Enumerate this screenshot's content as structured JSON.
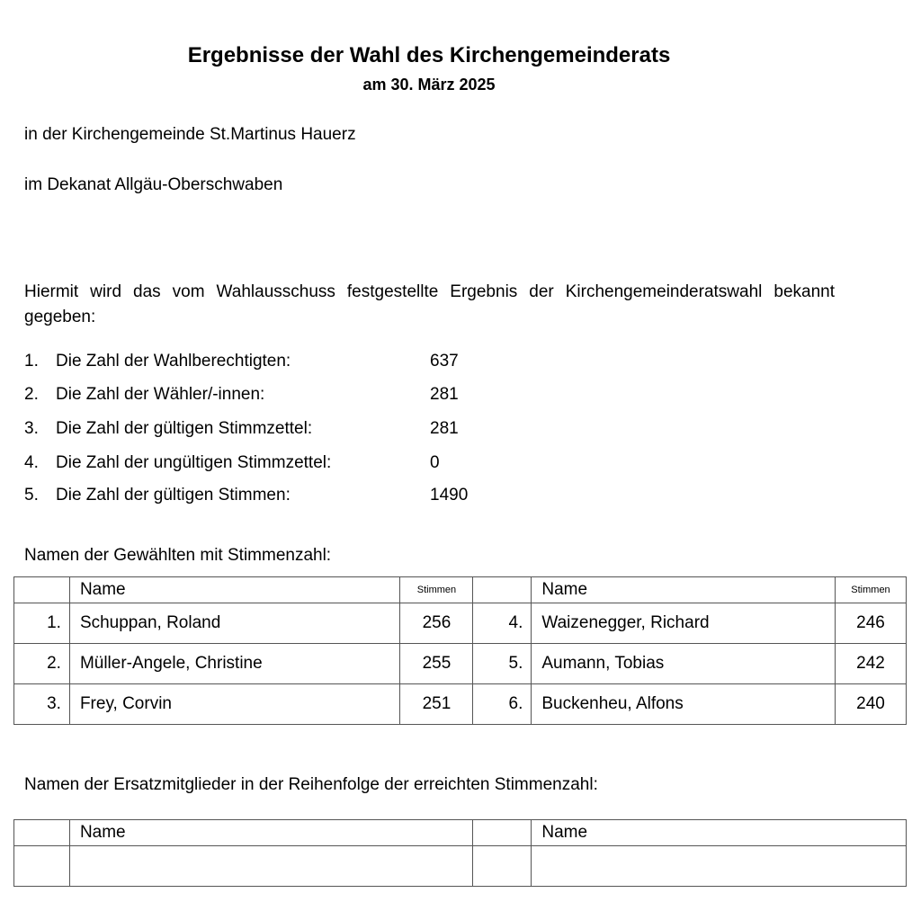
{
  "title": "Ergebnisse der Wahl des Kirchengemeinderats",
  "subtitle": "am 30. März 2025",
  "parish": "in der Kirchengemeinde St.Martinus Hauerz",
  "deanery": "im Dekanat Allgäu-Oberschwaben",
  "intro": "Hiermit wird das vom Wahlausschuss festgestellte Ergebnis der Kirchengemeinderatswahl bekannt gegeben:",
  "stats": [
    {
      "num": "1.",
      "label": "Die Zahl der Wahlberechtigten:",
      "value": "637"
    },
    {
      "num": "2.",
      "label": "Die Zahl der Wähler/-innen:",
      "value": "281"
    },
    {
      "num": "3.",
      "label": "Die Zahl der gültigen Stimmzettel:",
      "value": "281"
    },
    {
      "num": "4.",
      "label": "Die Zahl der ungültigen Stimmzettel:",
      "value": "0"
    },
    {
      "num": "5.",
      "label": "Die Zahl der gültigen Stimmen:",
      "value": "1490"
    }
  ],
  "elected": {
    "heading": "Namen der Gewählten mit Stimmenzahl:",
    "col_name": "Name",
    "col_votes": "Stimmen",
    "rows": [
      [
        {
          "num": "1.",
          "name": "Schuppan, Roland",
          "votes": "256"
        },
        {
          "num": "4.",
          "name": "Waizenegger, Richard",
          "votes": "246"
        }
      ],
      [
        {
          "num": "2.",
          "name": "Müller-Angele, Christine",
          "votes": "255"
        },
        {
          "num": "5.",
          "name": "Aumann, Tobias",
          "votes": "242"
        }
      ],
      [
        {
          "num": "3.",
          "name": "Frey, Corvin",
          "votes": "251"
        },
        {
          "num": "6.",
          "name": "Buckenheu, Alfons",
          "votes": "240"
        }
      ]
    ]
  },
  "substitutes": {
    "heading": "Namen der Ersatzmitglieder in der Reihenfolge der erreichten Stimmenzahl:",
    "col_name": "Name"
  }
}
